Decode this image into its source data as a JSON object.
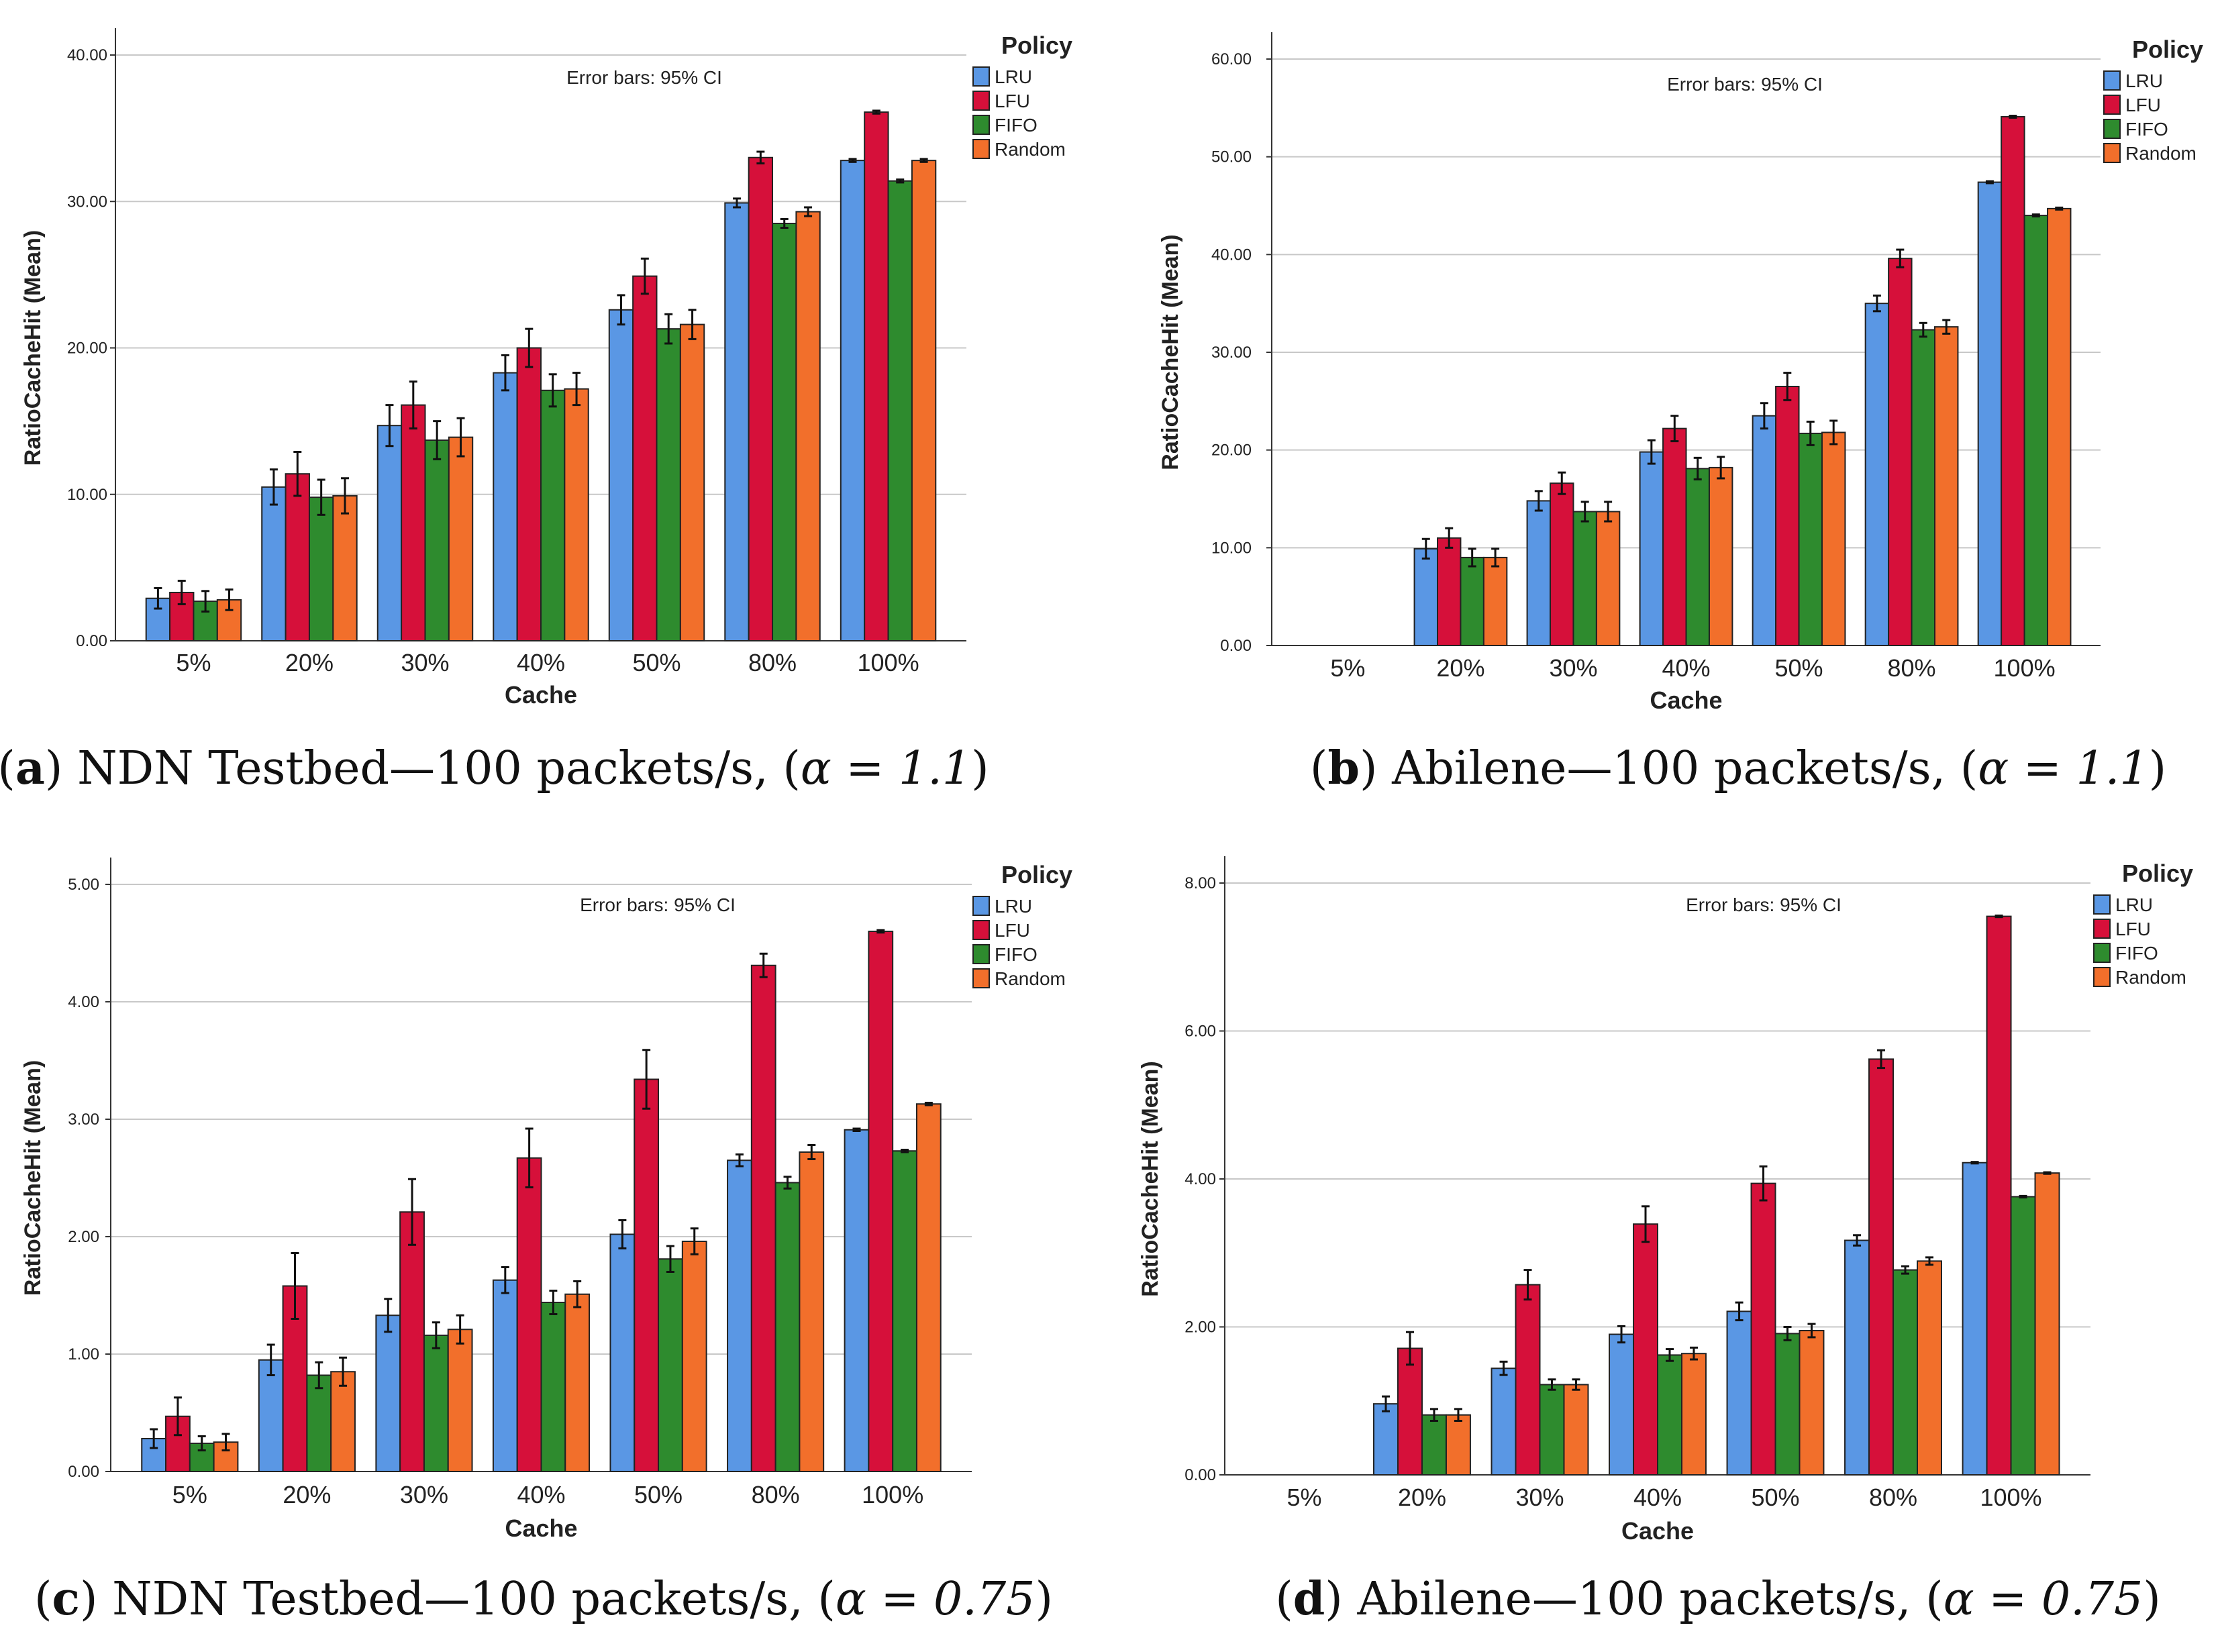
{
  "colors": {
    "LRU": "#5a97e4",
    "LFU": "#d6103a",
    "FIFO": "#2e8b2e",
    "Random": "#f26f2b",
    "grid": "#c8c8c8",
    "axis": "#333333",
    "errorbar": "#111111"
  },
  "chart_data": [
    {
      "type": "bar",
      "caption": {
        "letter": "a",
        "text": "NDN Testbed—100 packets/s,",
        "alpha": "α = 1.1"
      },
      "annotation": "Error bars: 95% CI",
      "xlabel": "Cache",
      "ylabel": "RatioCacheHit (Mean)",
      "ylim": [
        0,
        40
      ],
      "yticks": [
        "0.00",
        "10.00",
        "20.00",
        "30.00",
        "40.00"
      ],
      "ytick_values": [
        0,
        10,
        20,
        30,
        40
      ],
      "categories": [
        "5%",
        "20%",
        "30%",
        "40%",
        "50%",
        "80%",
        "100%"
      ],
      "legend": {
        "title": "Policy",
        "placement": "right"
      },
      "series": [
        {
          "name": "LRU",
          "values": [
            2.9,
            10.5,
            14.7,
            18.3,
            22.6,
            29.9,
            32.8
          ],
          "errors": [
            0.7,
            1.2,
            1.4,
            1.2,
            1.0,
            0.3,
            0.1
          ]
        },
        {
          "name": "LFU",
          "values": [
            3.3,
            11.4,
            16.1,
            20.0,
            24.9,
            33.0,
            36.1
          ],
          "errors": [
            0.8,
            1.5,
            1.6,
            1.3,
            1.2,
            0.4,
            0.1
          ]
        },
        {
          "name": "FIFO",
          "values": [
            2.7,
            9.8,
            13.7,
            17.1,
            21.3,
            28.5,
            31.4
          ],
          "errors": [
            0.7,
            1.2,
            1.3,
            1.1,
            1.0,
            0.3,
            0.1
          ]
        },
        {
          "name": "Random",
          "values": [
            2.8,
            9.9,
            13.9,
            17.2,
            21.6,
            29.3,
            32.8
          ],
          "errors": [
            0.7,
            1.2,
            1.3,
            1.1,
            1.0,
            0.3,
            0.1
          ]
        }
      ]
    },
    {
      "type": "bar",
      "caption": {
        "letter": "b",
        "text": "Abilene—100 packets/s,",
        "alpha": "α = 1.1"
      },
      "annotation": "Error bars: 95% CI",
      "xlabel": "Cache",
      "ylabel": "RatioCacheHit (Mean)",
      "ylim": [
        0,
        60
      ],
      "yticks": [
        "0.00",
        "10.00",
        "20.00",
        "30.00",
        "40.00",
        "50.00",
        "60.00"
      ],
      "ytick_values": [
        0,
        10,
        20,
        30,
        40,
        50,
        60
      ],
      "categories": [
        "5%",
        "20%",
        "30%",
        "40%",
        "50%",
        "80%",
        "100%"
      ],
      "legend": {
        "title": "Policy",
        "placement": "right"
      },
      "series": [
        {
          "name": "LRU",
          "values": [
            0,
            9.9,
            14.8,
            19.8,
            23.5,
            35.0,
            47.4
          ],
          "errors": [
            0,
            1.0,
            1.0,
            1.2,
            1.3,
            0.8,
            0.1
          ]
        },
        {
          "name": "LFU",
          "values": [
            0,
            11.0,
            16.6,
            22.2,
            26.5,
            39.6,
            54.1
          ],
          "errors": [
            0,
            1.0,
            1.1,
            1.3,
            1.4,
            0.9,
            0.1
          ]
        },
        {
          "name": "FIFO",
          "values": [
            0,
            9.0,
            13.7,
            18.1,
            21.7,
            32.3,
            44.0
          ],
          "errors": [
            0,
            0.9,
            1.0,
            1.1,
            1.2,
            0.7,
            0.1
          ]
        },
        {
          "name": "Random",
          "values": [
            0,
            9.0,
            13.7,
            18.2,
            21.8,
            32.6,
            44.7
          ],
          "errors": [
            0,
            0.9,
            1.0,
            1.1,
            1.2,
            0.7,
            0.1
          ]
        }
      ]
    },
    {
      "type": "bar",
      "caption": {
        "letter": "c",
        "text": "NDN Testbed—100 packets/s,",
        "alpha": "α = 0.75"
      },
      "annotation": "Error bars: 95% CI",
      "xlabel": "Cache",
      "ylabel": "RatioCacheHit (Mean)",
      "ylim": [
        0,
        5
      ],
      "yticks": [
        "0.00",
        "1.00",
        "2.00",
        "3.00",
        "4.00",
        "5.00"
      ],
      "ytick_values": [
        0,
        1,
        2,
        3,
        4,
        5
      ],
      "categories": [
        "5%",
        "20%",
        "30%",
        "40%",
        "50%",
        "80%",
        "100%"
      ],
      "legend": {
        "title": "Policy",
        "placement": "right"
      },
      "series": [
        {
          "name": "LRU",
          "values": [
            0.28,
            0.95,
            1.33,
            1.63,
            2.02,
            2.65,
            2.91
          ],
          "errors": [
            0.08,
            0.13,
            0.14,
            0.11,
            0.12,
            0.05,
            0.01
          ]
        },
        {
          "name": "LFU",
          "values": [
            0.47,
            1.58,
            2.21,
            2.67,
            3.34,
            4.31,
            4.6
          ],
          "errors": [
            0.16,
            0.28,
            0.28,
            0.25,
            0.25,
            0.1,
            0.01
          ]
        },
        {
          "name": "FIFO",
          "values": [
            0.24,
            0.82,
            1.16,
            1.44,
            1.81,
            2.46,
            2.73
          ],
          "errors": [
            0.06,
            0.11,
            0.11,
            0.1,
            0.11,
            0.05,
            0.01
          ]
        },
        {
          "name": "Random",
          "values": [
            0.25,
            0.85,
            1.21,
            1.51,
            1.96,
            2.72,
            3.13
          ],
          "errors": [
            0.07,
            0.12,
            0.12,
            0.11,
            0.11,
            0.06,
            0.01
          ]
        }
      ]
    },
    {
      "type": "bar",
      "caption": {
        "letter": "d",
        "text": "Abilene—100 packets/s,",
        "alpha": "α = 0.75"
      },
      "annotation": "Error bars: 95% CI",
      "xlabel": "Cache",
      "ylabel": "RatioCacheHit (Mean)",
      "ylim": [
        0,
        8
      ],
      "yticks": [
        "0.00",
        "2.00",
        "4.00",
        "6.00",
        "8.00"
      ],
      "ytick_values": [
        0,
        2,
        4,
        6,
        8
      ],
      "categories": [
        "5%",
        "20%",
        "30%",
        "40%",
        "50%",
        "80%",
        "100%"
      ],
      "legend": {
        "title": "Policy",
        "placement": "right"
      },
      "series": [
        {
          "name": "LRU",
          "values": [
            0,
            0.96,
            1.44,
            1.9,
            2.21,
            3.17,
            4.22
          ],
          "errors": [
            0,
            0.1,
            0.09,
            0.11,
            0.12,
            0.07,
            0.01
          ]
        },
        {
          "name": "LFU",
          "values": [
            0,
            1.71,
            2.57,
            3.39,
            3.94,
            5.62,
            7.55
          ],
          "errors": [
            0,
            0.22,
            0.2,
            0.24,
            0.23,
            0.12,
            0.01
          ]
        },
        {
          "name": "FIFO",
          "values": [
            0,
            0.81,
            1.22,
            1.62,
            1.91,
            2.77,
            3.76
          ],
          "errors": [
            0,
            0.08,
            0.07,
            0.08,
            0.09,
            0.05,
            0.01
          ]
        },
        {
          "name": "Random",
          "values": [
            0,
            0.81,
            1.22,
            1.64,
            1.95,
            2.89,
            4.08
          ],
          "errors": [
            0,
            0.08,
            0.07,
            0.08,
            0.09,
            0.05,
            0.01
          ]
        }
      ]
    }
  ]
}
